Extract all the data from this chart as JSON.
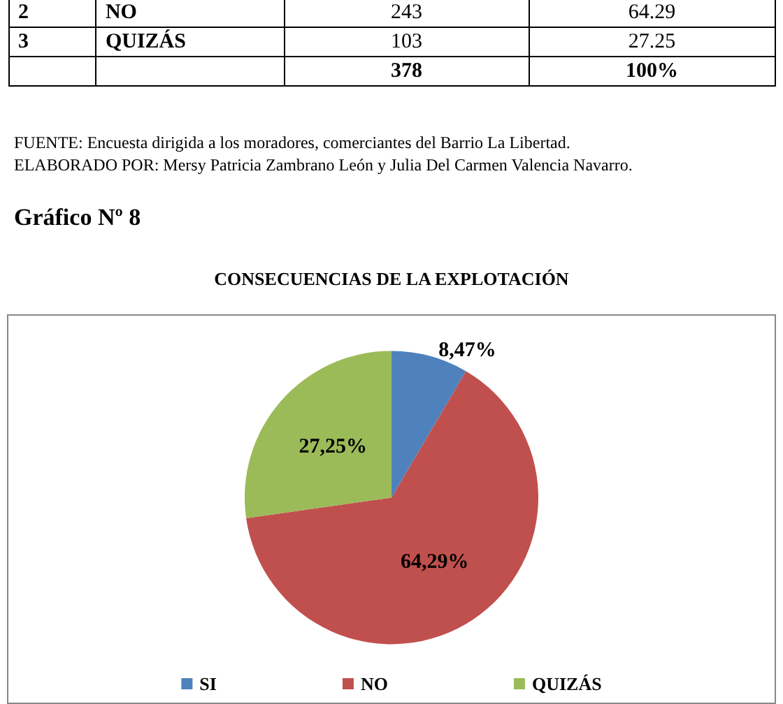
{
  "chart_data": {
    "type": "pie",
    "title": "CONSECUENCIAS DE LA EXPLOTACIÓN",
    "categories": [
      "SI",
      "NO",
      "QUIZÁS"
    ],
    "values": [
      8.47,
      64.29,
      27.25
    ],
    "colors": [
      "#4f81bd",
      "#c0504d",
      "#9bbb59"
    ],
    "value_labels": [
      "8,47%",
      "64,29%",
      "27,25%"
    ],
    "legend": "bottom",
    "annotations": [
      "2",
      "NO",
      "243",
      "64.29",
      "3",
      "QUIZÁS",
      "103",
      "27.25",
      "378",
      "100%",
      "FUENTE: Encuesta dirigida a los moradores, comerciantes del Barrio La Libertad.",
      "ELABORADO POR: Mersy Patricia Zambrano León y Julia Del Carmen Valencia Navarro.",
      "Gráfico Nº 8"
    ]
  }
}
